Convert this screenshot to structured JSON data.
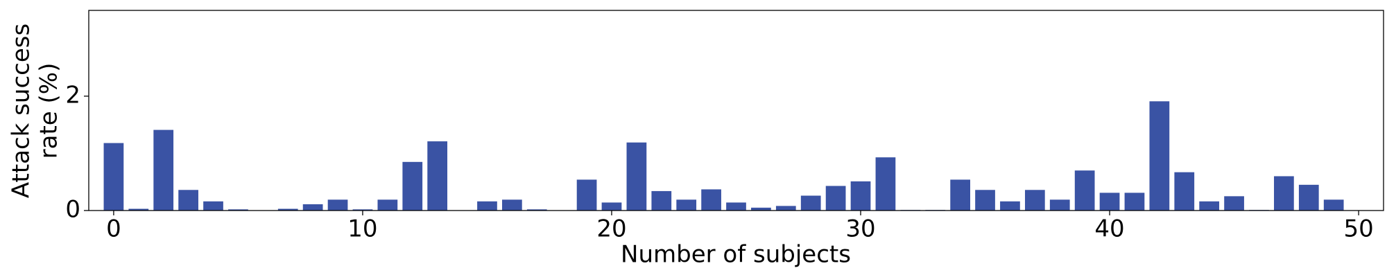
{
  "chart_data": {
    "type": "bar",
    "xlabel": "Number of subjects",
    "ylabel": [
      "Attack success",
      "rate (%)"
    ],
    "x": [
      0,
      1,
      2,
      3,
      4,
      5,
      6,
      7,
      8,
      9,
      10,
      11,
      12,
      13,
      14,
      15,
      16,
      17,
      18,
      19,
      20,
      21,
      22,
      23,
      24,
      25,
      26,
      27,
      28,
      29,
      30,
      31,
      32,
      33,
      34,
      35,
      36,
      37,
      38,
      39,
      40,
      41,
      42,
      43,
      44,
      45,
      46,
      47,
      48,
      49
    ],
    "values": [
      1.18,
      0.03,
      1.41,
      0.36,
      0.16,
      0.02,
      0,
      0.03,
      0.11,
      0.19,
      0.02,
      0.19,
      0.85,
      1.21,
      0,
      0.16,
      0.19,
      0.02,
      0,
      0.54,
      0.14,
      1.19,
      0.34,
      0.19,
      0.37,
      0.14,
      0.05,
      0.08,
      0.26,
      0.43,
      0.51,
      0.93,
      0.01,
      0.01,
      0.54,
      0.36,
      0.16,
      0.36,
      0.19,
      0.7,
      0.31,
      0.31,
      1.91,
      0.67,
      0.16,
      0.25,
      0.01,
      0.6,
      0.45,
      0.19
    ],
    "color": "#3a53a4",
    "xlim": [
      -1,
      51
    ],
    "xticks": [
      0,
      10,
      20,
      30,
      40,
      50
    ],
    "ylim": [
      0,
      3.5
    ],
    "yticks": [
      0,
      2
    ],
    "grid": false
  }
}
